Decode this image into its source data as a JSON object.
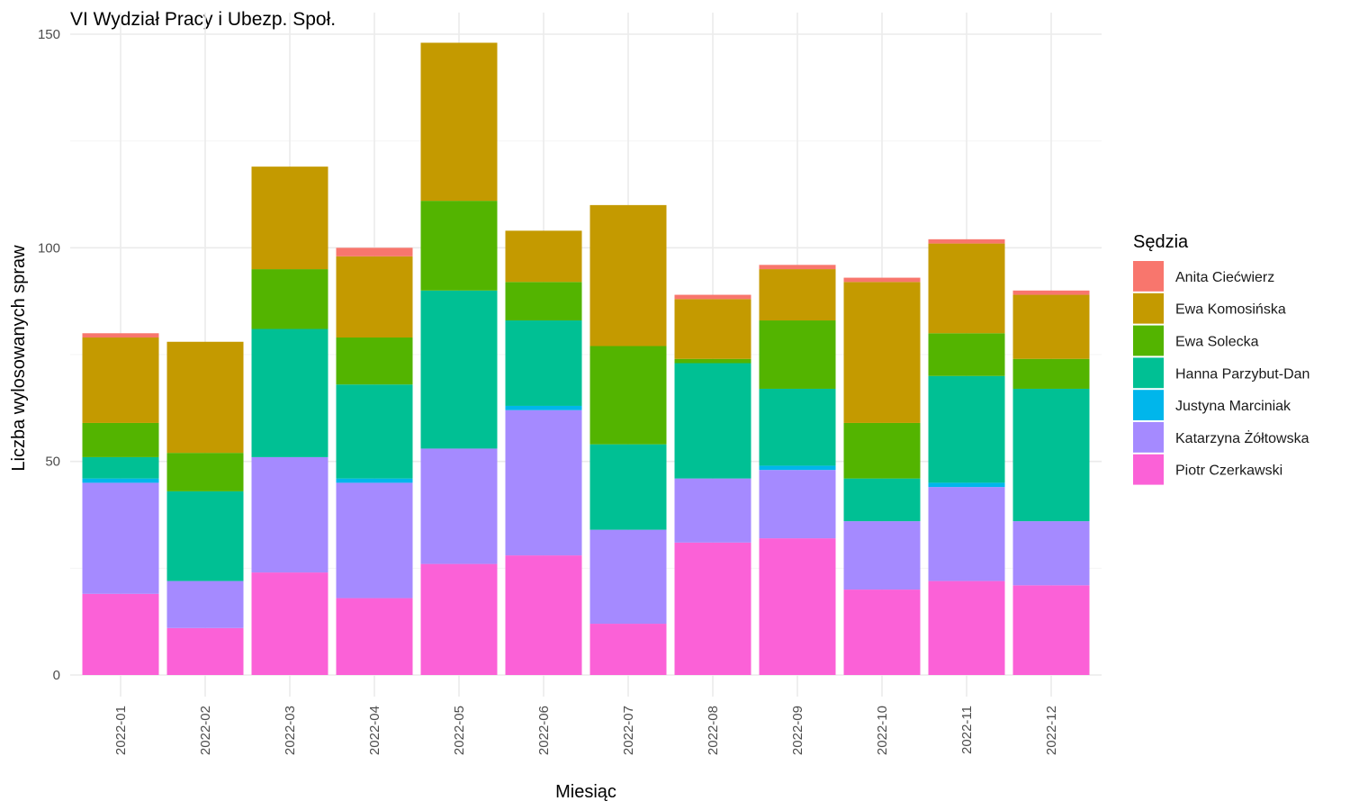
{
  "chart_data": {
    "type": "bar",
    "stacked": true,
    "title": "VI Wydział Pracy i Ubezp. Społ.",
    "xlabel": "Miesiąc",
    "ylabel": "Liczba wylosowanych spraw",
    "ylim": [
      0,
      150
    ],
    "yticks": [
      0,
      50,
      100,
      150
    ],
    "grid": true,
    "legend_title": "Sędzia",
    "legend_position": "right",
    "categories": [
      "2022-01",
      "2022-02",
      "2022-03",
      "2022-04",
      "2022-05",
      "2022-06",
      "2022-07",
      "2022-08",
      "2022-09",
      "2022-10",
      "2022-11",
      "2022-12"
    ],
    "series": [
      {
        "name": "Anita Ciećwierz",
        "color": "#F8766D",
        "values": [
          1,
          0,
          0,
          2,
          0,
          0,
          0,
          1,
          1,
          1,
          1,
          1
        ]
      },
      {
        "name": "Ewa Komosińska",
        "color": "#C49A00",
        "values": [
          20,
          26,
          24,
          19,
          37,
          12,
          33,
          14,
          12,
          33,
          21,
          15
        ]
      },
      {
        "name": "Ewa Solecka",
        "color": "#53B400",
        "values": [
          8,
          9,
          14,
          11,
          21,
          9,
          23,
          1,
          16,
          13,
          10,
          7
        ]
      },
      {
        "name": "Hanna Parzybut-Dan",
        "color": "#00C094",
        "values": [
          5,
          21,
          30,
          22,
          37,
          20,
          20,
          27,
          18,
          10,
          25,
          31
        ]
      },
      {
        "name": "Justyna Marciniak",
        "color": "#00B6EB",
        "values": [
          1,
          0,
          0,
          1,
          0,
          1,
          0,
          0,
          1,
          0,
          1,
          0
        ]
      },
      {
        "name": "Katarzyna Żółtowska",
        "color": "#A58AFF",
        "values": [
          26,
          11,
          27,
          27,
          27,
          34,
          22,
          15,
          16,
          16,
          22,
          15
        ]
      },
      {
        "name": "Piotr Czerkawski",
        "color": "#FB61D7",
        "values": [
          19,
          11,
          24,
          18,
          26,
          28,
          12,
          31,
          32,
          20,
          22,
          21
        ]
      }
    ]
  }
}
